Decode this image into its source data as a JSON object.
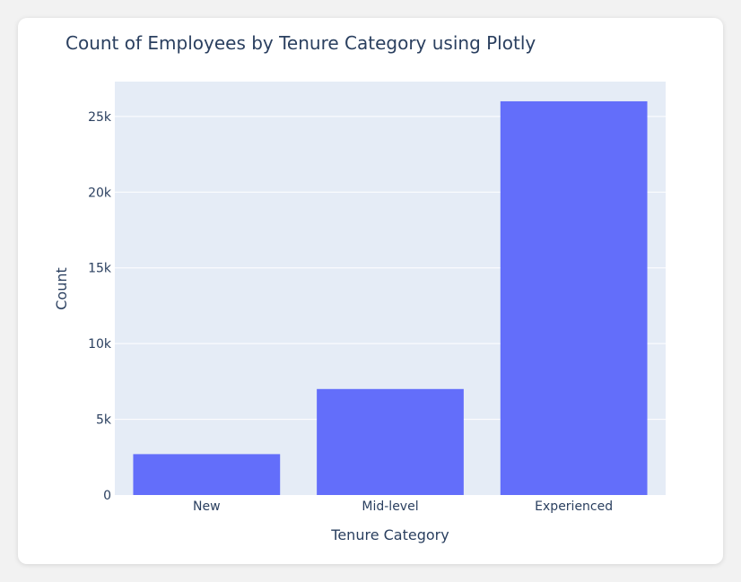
{
  "chart_data": {
    "type": "bar",
    "title": "Count of Employees by Tenure Category using Plotly",
    "xlabel": "Tenure Category",
    "ylabel": "Count",
    "categories": [
      "New",
      "Mid-level",
      "Experienced"
    ],
    "values": [
      2700,
      7000,
      26000
    ],
    "ylim": [
      0,
      27300
    ],
    "yticks": [
      0,
      5000,
      10000,
      15000,
      20000,
      25000
    ],
    "ytick_labels": [
      "0",
      "5k",
      "10k",
      "15k",
      "20k",
      "25k"
    ],
    "grid": true,
    "legend": "none",
    "colors": {
      "bar": "#636efa",
      "plot_bg": "#e5ecf6",
      "grid": "#ffffff",
      "text": "#2a3f5f"
    }
  }
}
